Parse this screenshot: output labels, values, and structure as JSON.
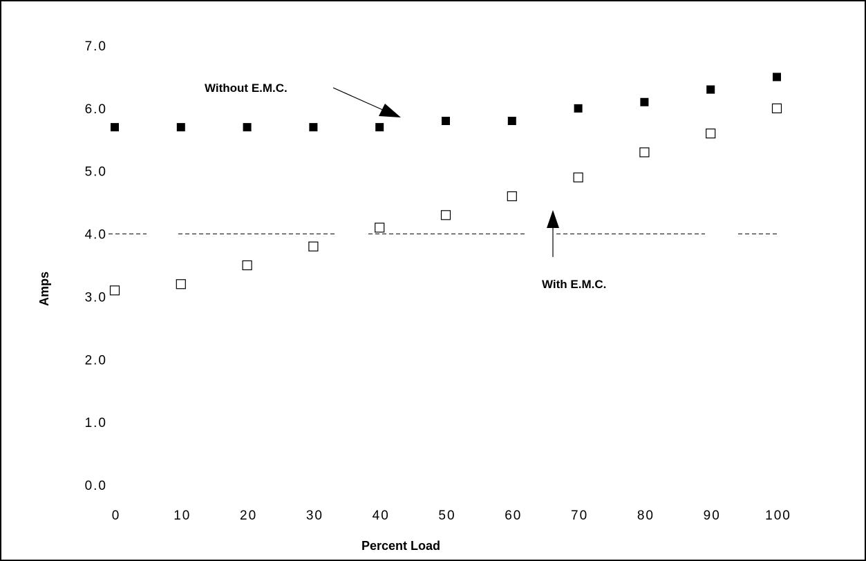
{
  "chart_data": {
    "type": "scatter",
    "title": "",
    "xlabel": "Percent Load",
    "ylabel": "Amps",
    "x": [
      0,
      10,
      20,
      30,
      40,
      50,
      60,
      70,
      80,
      90,
      100
    ],
    "x_tick_labels": [
      "0",
      "10",
      "20",
      "30",
      "40",
      "50",
      "60",
      "70",
      "80",
      "90",
      "100"
    ],
    "y_tick_labels": [
      "0.0",
      "1.0",
      "2.0",
      "3.0",
      "4.0",
      "5.0",
      "6.0",
      "7.0"
    ],
    "xlim": [
      0,
      100
    ],
    "ylim": [
      0,
      7
    ],
    "grid": false,
    "reference_line": {
      "y": 4.0,
      "style": "dashed"
    },
    "series": [
      {
        "marker": "filled-square",
        "color": "#000000",
        "values": [
          5.7,
          5.7,
          5.7,
          5.7,
          5.7,
          5.8,
          5.8,
          6.0,
          6.1,
          6.3,
          6.5
        ]
      },
      {
        "marker": "open-square",
        "color": "#000000",
        "values": [
          3.1,
          3.2,
          3.5,
          3.8,
          4.1,
          4.3,
          4.6,
          4.9,
          5.3,
          5.6,
          6.0
        ]
      }
    ],
    "annotations": [
      {
        "text": "Without E.M.C.",
        "arrow": true,
        "target": {
          "x": 45,
          "y": 5.85
        }
      },
      {
        "text": "With E.M.C.",
        "arrow": true,
        "target": {
          "x": 66,
          "y": 4.4
        }
      }
    ]
  }
}
